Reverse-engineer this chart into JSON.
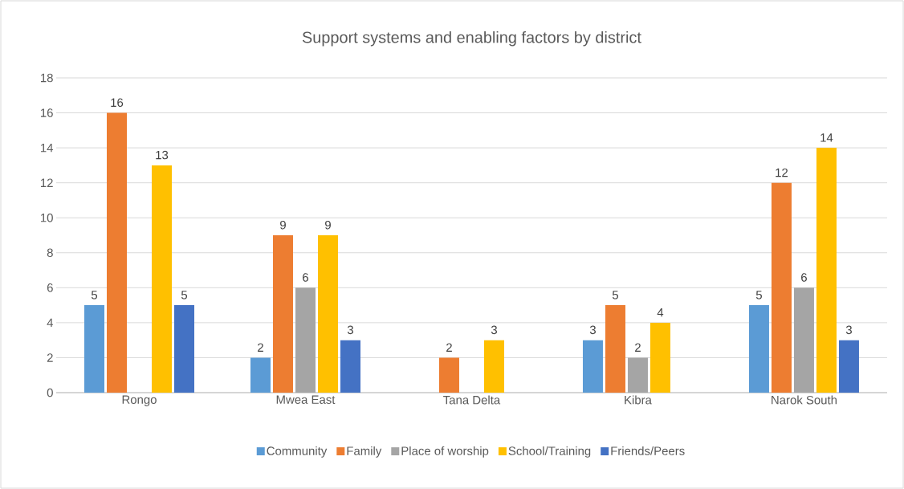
{
  "chart_data": {
    "type": "bar",
    "title": "Support systems and enabling factors by district",
    "categories": [
      "Rongo",
      "Mwea East",
      "Tana Delta",
      "Kibra",
      "Narok South"
    ],
    "series": [
      {
        "name": "Community",
        "color": "#5b9bd5",
        "values": [
          5,
          2,
          null,
          3,
          5
        ]
      },
      {
        "name": "Family",
        "color": "#ed7d31",
        "values": [
          16,
          9,
          2,
          5,
          12
        ]
      },
      {
        "name": "Place of worship",
        "color": "#a5a5a5",
        "values": [
          null,
          6,
          null,
          2,
          6
        ]
      },
      {
        "name": "School/Training",
        "color": "#ffc000",
        "values": [
          13,
          9,
          3,
          4,
          14
        ]
      },
      {
        "name": "Friends/Peers",
        "color": "#4472c4",
        "values": [
          5,
          3,
          null,
          null,
          3
        ]
      }
    ],
    "ylim": [
      0,
      18
    ],
    "yticks": [
      0,
      2,
      4,
      6,
      8,
      10,
      12,
      14,
      16,
      18
    ],
    "grid": "y",
    "legend": "bottom",
    "data_labels": true
  }
}
